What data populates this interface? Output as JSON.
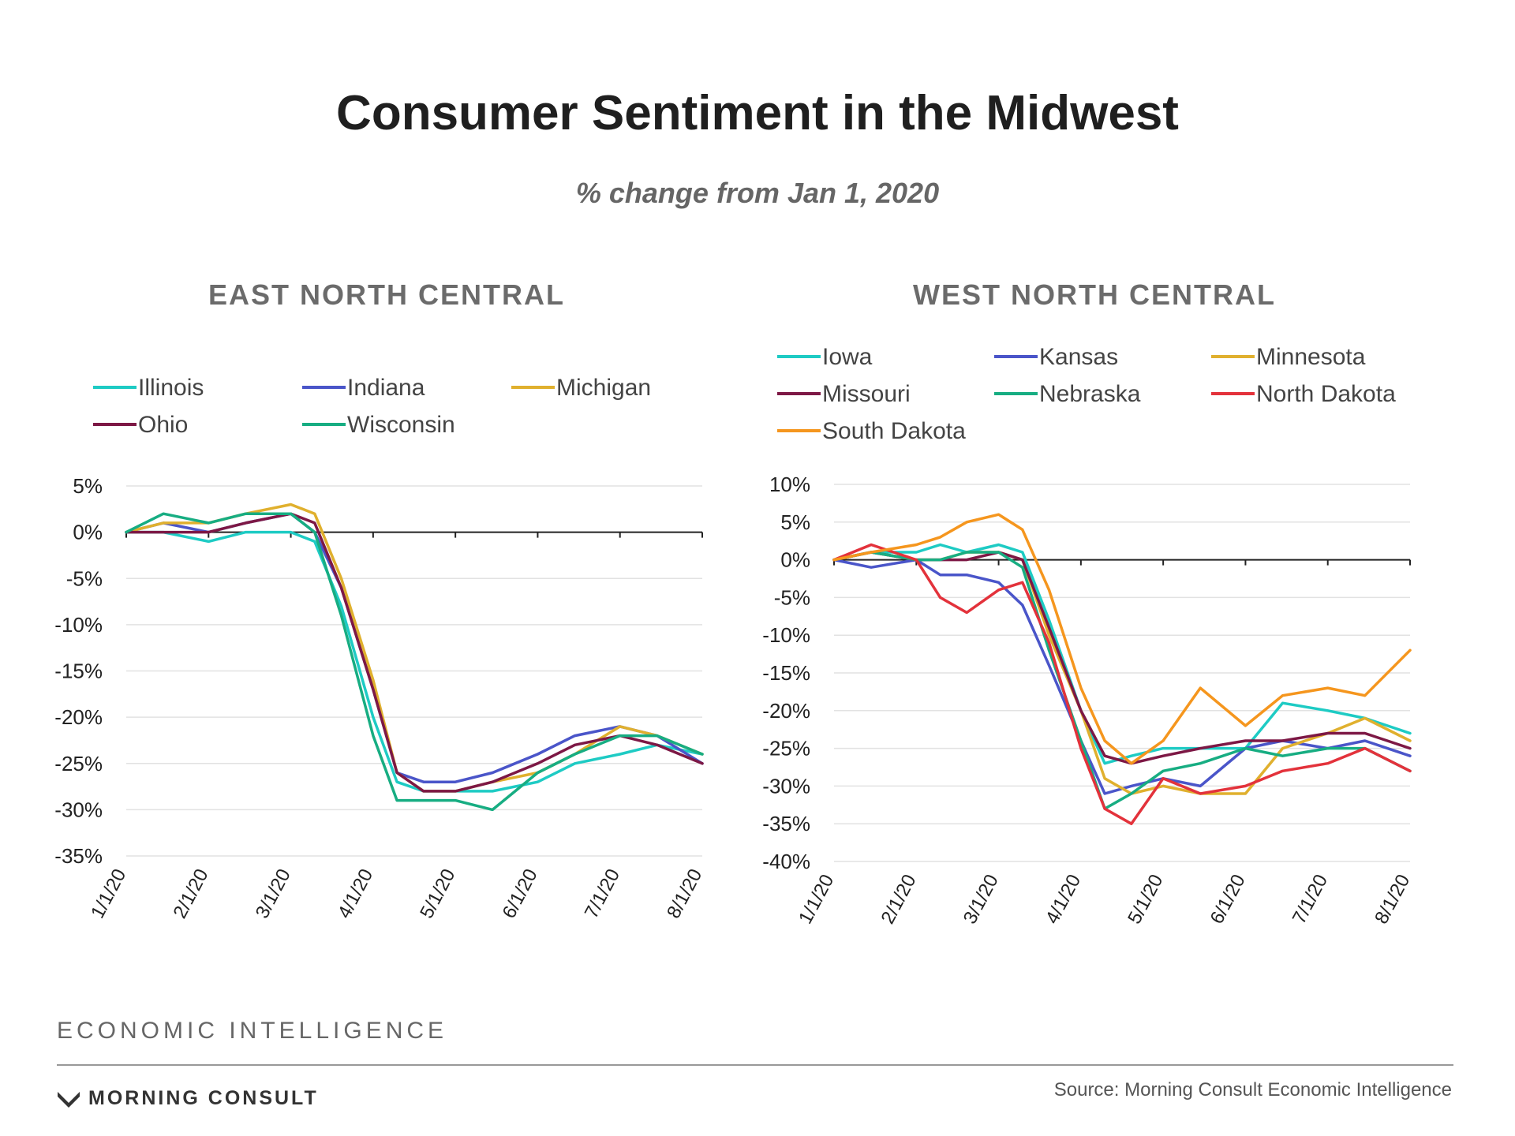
{
  "title": "Consumer Sentiment in the Midwest",
  "subtitle": "% change from Jan 1, 2020",
  "footer": {
    "label": "ECONOMIC INTELLIGENCE",
    "brand": "MORNING CONSULT",
    "source": "Source: Morning Consult Economic Intelligence"
  },
  "colors": {
    "Illinois": "#1ecbc4",
    "Indiana": "#4a55c9",
    "Michigan": "#e0b02e",
    "Ohio": "#7d1845",
    "Wisconsin": "#17ad82",
    "Iowa": "#1ecbc4",
    "Kansas": "#4a55c9",
    "Minnesota": "#e0b02e",
    "Missouri": "#7d1845",
    "Nebraska": "#17ad82",
    "North Dakota": "#e3323b",
    "South Dakota": "#f5961e"
  },
  "chart_data": [
    {
      "type": "line",
      "title": "EAST NORTH CENTRAL",
      "legend_position": "top",
      "x": [
        "1/1/20",
        "1/15/20",
        "2/1/20",
        "2/15/20",
        "3/1/20",
        "3/10/20",
        "3/20/20",
        "4/1/20",
        "4/10/20",
        "4/20/20",
        "5/1/20",
        "5/15/20",
        "6/1/20",
        "6/15/20",
        "7/1/20",
        "7/15/20",
        "8/1/20"
      ],
      "xticks": [
        "1/1/20",
        "2/1/20",
        "3/1/20",
        "4/1/20",
        "5/1/20",
        "6/1/20",
        "7/1/20",
        "8/1/20"
      ],
      "yticks": [
        5,
        0,
        -5,
        -10,
        -15,
        -20,
        -25,
        -30,
        -35
      ],
      "ylim": [
        -35,
        5
      ],
      "series": [
        {
          "name": "Illinois",
          "values": [
            0,
            0,
            -1,
            0,
            0,
            -1,
            -8,
            -20,
            -27,
            -28,
            -28,
            -28,
            -27,
            -25,
            -24,
            -23,
            -24
          ]
        },
        {
          "name": "Indiana",
          "values": [
            0,
            1,
            0,
            1,
            2,
            0,
            -6,
            -17,
            -26,
            -27,
            -27,
            -26,
            -24,
            -22,
            -21,
            -22,
            -25
          ]
        },
        {
          "name": "Michigan",
          "values": [
            0,
            1,
            1,
            2,
            3,
            2,
            -5,
            -16,
            -26,
            -28,
            -28,
            -27,
            -26,
            -24,
            -21,
            -22,
            -24
          ]
        },
        {
          "name": "Ohio",
          "values": [
            0,
            0,
            0,
            1,
            2,
            1,
            -6,
            -17,
            -26,
            -28,
            -28,
            -27,
            -25,
            -23,
            -22,
            -23,
            -25
          ]
        },
        {
          "name": "Wisconsin",
          "values": [
            0,
            2,
            1,
            2,
            2,
            0,
            -9,
            -22,
            -29,
            -29,
            -29,
            -30,
            -26,
            -24,
            -22,
            -22,
            -24
          ]
        }
      ]
    },
    {
      "type": "line",
      "title": "WEST NORTH CENTRAL",
      "legend_position": "top",
      "x": [
        "1/1/20",
        "1/15/20",
        "2/1/20",
        "2/10/20",
        "2/20/20",
        "3/1/20",
        "3/10/20",
        "3/20/20",
        "4/1/20",
        "4/10/20",
        "4/20/20",
        "5/1/20",
        "5/15/20",
        "6/1/20",
        "6/15/20",
        "7/1/20",
        "7/15/20",
        "8/1/20"
      ],
      "xticks": [
        "1/1/20",
        "2/1/20",
        "3/1/20",
        "4/1/20",
        "5/1/20",
        "6/1/20",
        "7/1/20",
        "8/1/20"
      ],
      "yticks": [
        10,
        5,
        0,
        -5,
        -10,
        -15,
        -20,
        -25,
        -30,
        -35,
        -40
      ],
      "ylim": [
        -40,
        10
      ],
      "series": [
        {
          "name": "Iowa",
          "values": [
            0,
            1,
            1,
            2,
            1,
            2,
            1,
            -8,
            -20,
            -27,
            -26,
            -25,
            -25,
            -25,
            -19,
            -20,
            -21,
            -23
          ]
        },
        {
          "name": "Kansas",
          "values": [
            0,
            -1,
            0,
            -2,
            -2,
            -3,
            -6,
            -14,
            -24,
            -31,
            -30,
            -29,
            -30,
            -25,
            -24,
            -25,
            -24,
            -26
          ]
        },
        {
          "name": "Minnesota",
          "values": [
            0,
            1,
            0,
            0,
            1,
            1,
            0,
            -10,
            -20,
            -29,
            -31,
            -30,
            -31,
            -31,
            -25,
            -23,
            -21,
            -24
          ]
        },
        {
          "name": "Missouri",
          "values": [
            0,
            1,
            0,
            0,
            0,
            1,
            0,
            -9,
            -20,
            -26,
            -27,
            -26,
            -25,
            -24,
            -24,
            -23,
            -23,
            -25
          ]
        },
        {
          "name": "Nebraska",
          "values": [
            0,
            1,
            0,
            0,
            1,
            1,
            -1,
            -12,
            -24,
            -33,
            -31,
            -28,
            -27,
            -25,
            -26,
            -25,
            -25,
            -28
          ]
        },
        {
          "name": "North Dakota",
          "values": [
            0,
            2,
            0,
            -5,
            -7,
            -4,
            -3,
            -11,
            -25,
            -33,
            -35,
            -29,
            -31,
            -30,
            -28,
            -27,
            -25,
            -28
          ]
        },
        {
          "name": "South Dakota",
          "values": [
            0,
            1,
            2,
            3,
            5,
            6,
            4,
            -4,
            -17,
            -24,
            -27,
            -24,
            -17,
            -22,
            -18,
            -17,
            -18,
            -12
          ]
        }
      ]
    }
  ]
}
